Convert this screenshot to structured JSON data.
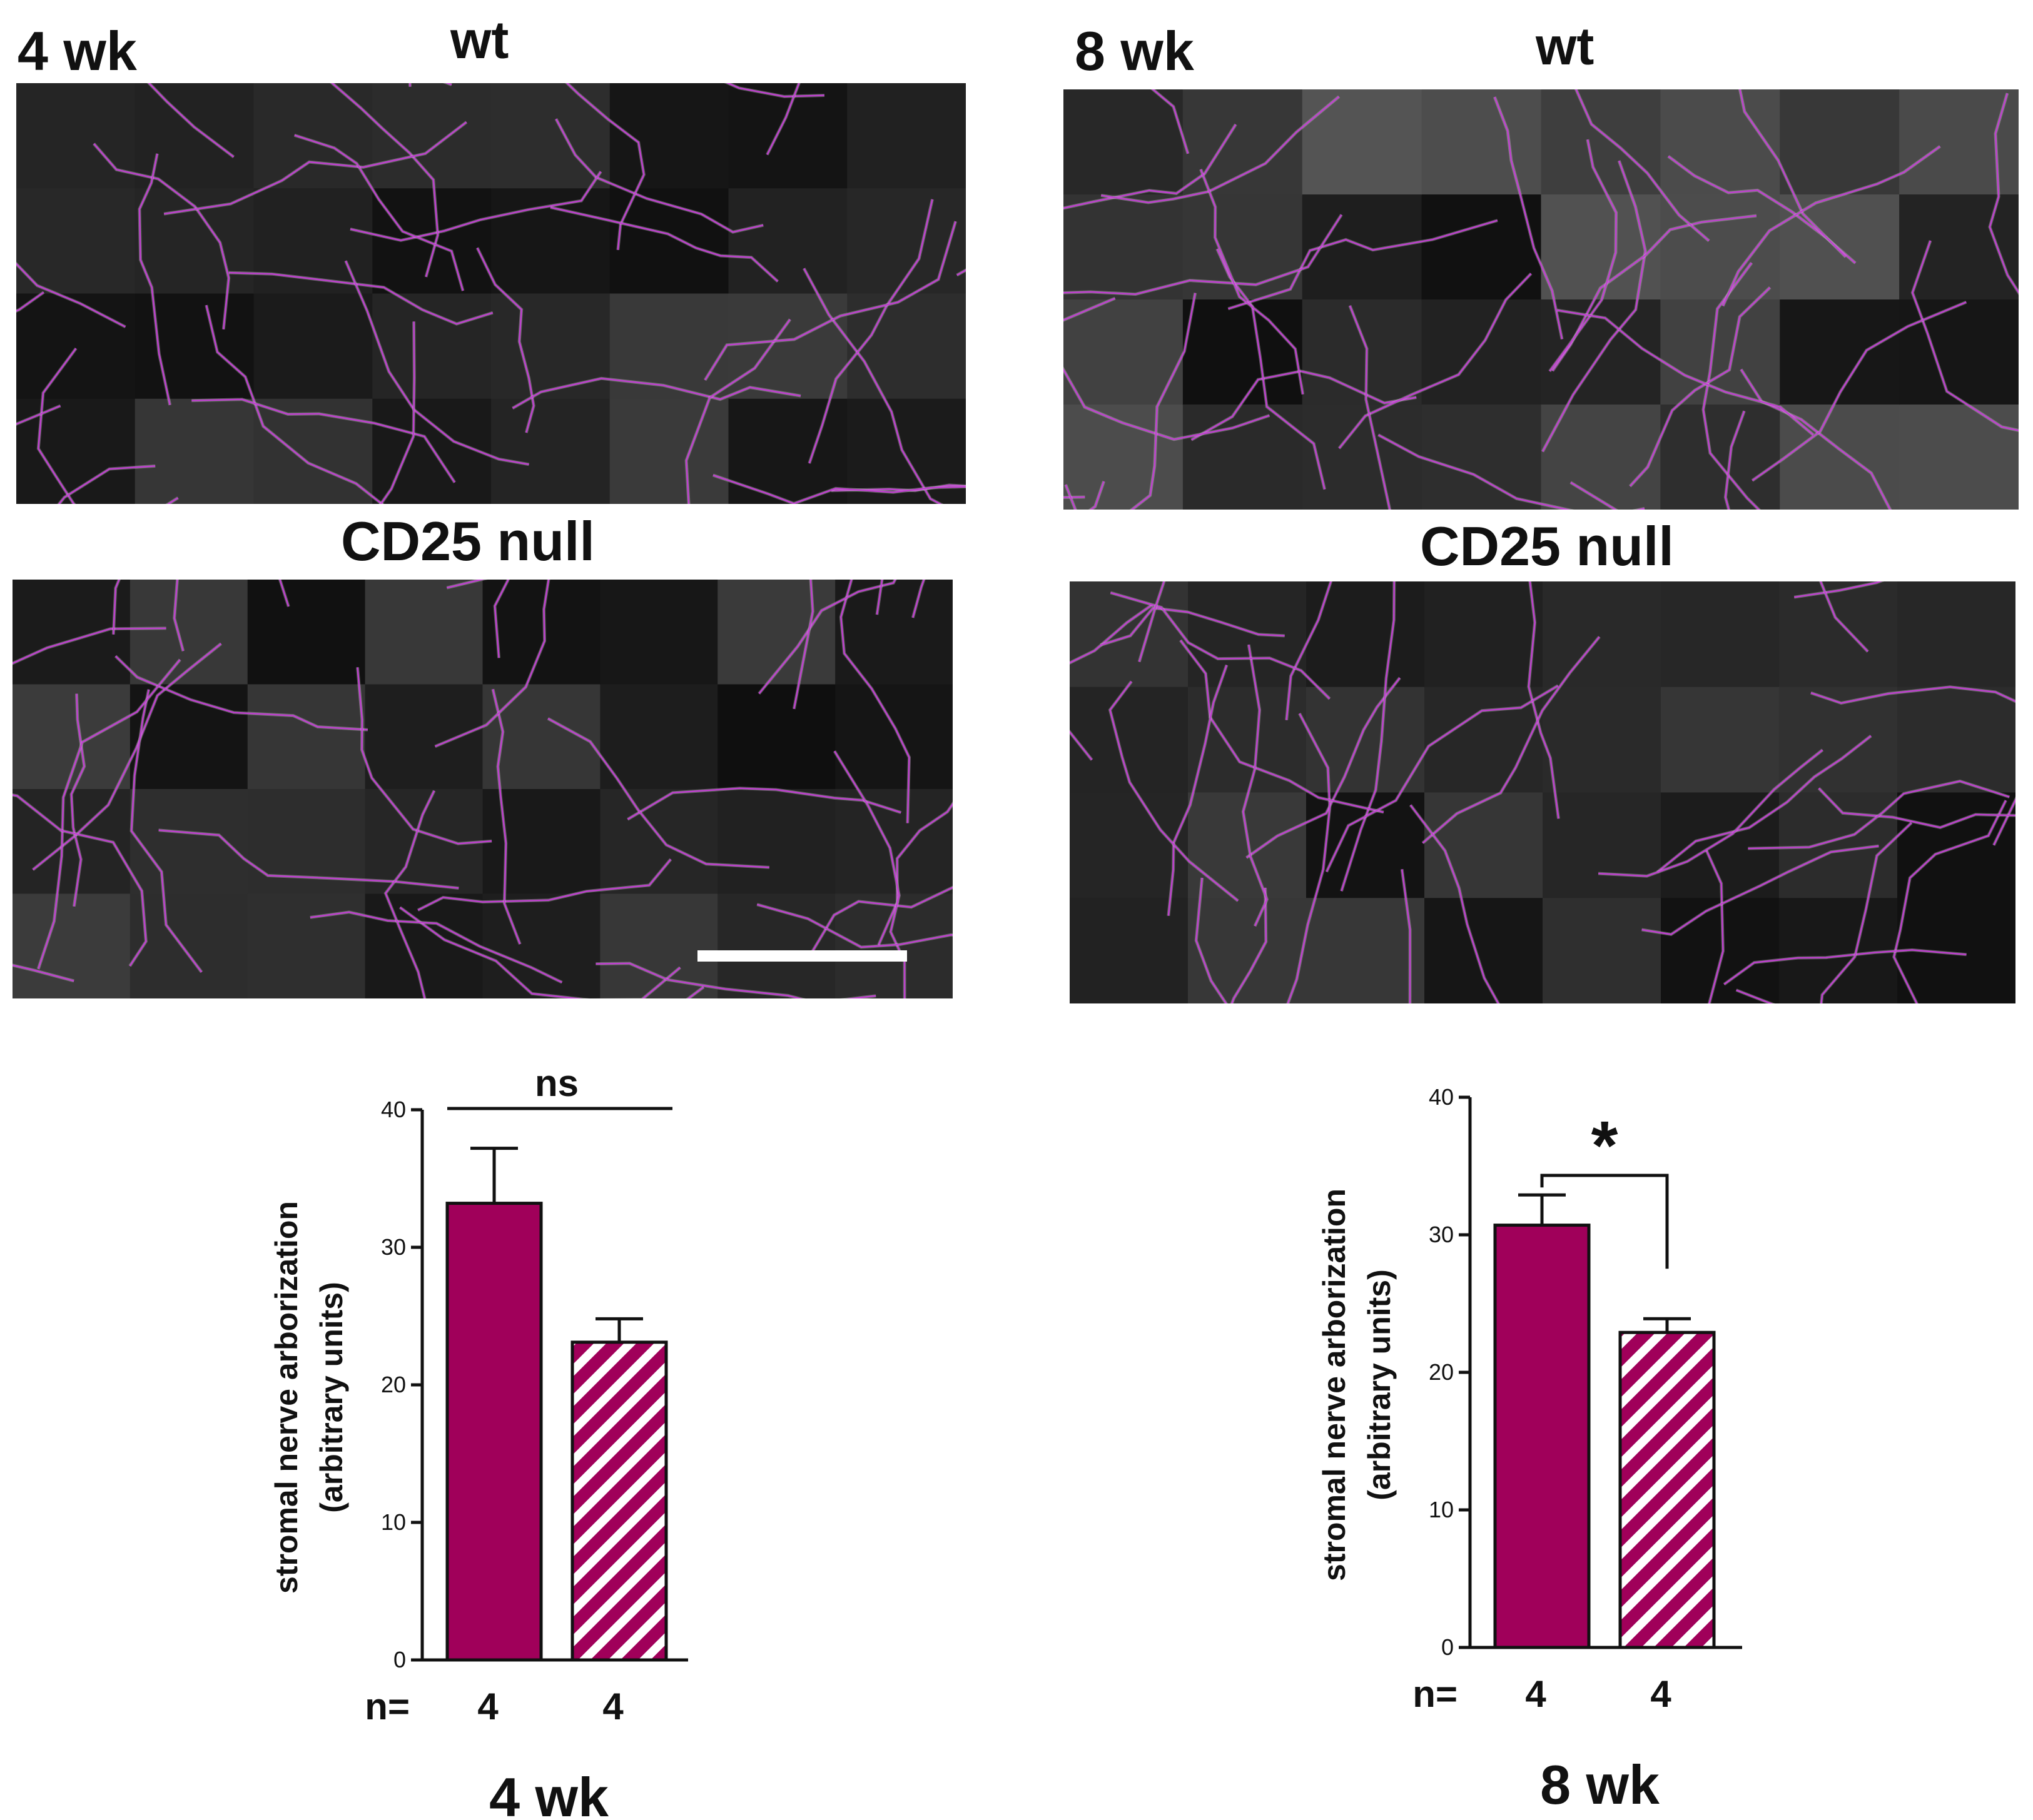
{
  "panels": {
    "left": {
      "age_label": "4 wk",
      "top_label": "wt",
      "bottom_label": "CD25 null"
    },
    "right": {
      "age_label": "8 wk",
      "top_label": "wt",
      "bottom_label": "CD25 null"
    }
  },
  "colors": {
    "wt": "#a0005a",
    "cd25_null_stripe": "#a0005a",
    "nerve_trace": "#c040d0",
    "axis": "#111111"
  },
  "chart_data": [
    {
      "type": "bar",
      "title": "4 wk",
      "ylabel": "stromal nerve arborization (arbitrary units)",
      "ylabel_lines": [
        "stromal nerve arborization",
        "(arbitrary units)"
      ],
      "ylim": [
        0,
        40
      ],
      "yticks": [
        "0",
        "10",
        "20",
        "30",
        "40"
      ],
      "categories": [
        "wt",
        "CD25 null"
      ],
      "values": [
        33.2,
        23.1
      ],
      "errors": [
        4.0,
        1.7
      ],
      "fills": [
        "solid",
        "striped"
      ],
      "n_prefix": "n=",
      "n_values": [
        "4",
        "4"
      ],
      "significance": "ns"
    },
    {
      "type": "bar",
      "title": "8 wk",
      "ylabel": "stromal nerve arborization (arbitrary units)",
      "ylabel_lines": [
        "stromal nerve arborization",
        "(arbitrary units)"
      ],
      "ylim": [
        0,
        40
      ],
      "yticks": [
        "0",
        "10",
        "20",
        "30",
        "40"
      ],
      "categories": [
        "wt",
        "CD25 null"
      ],
      "values": [
        30.7,
        22.9
      ],
      "errors": [
        2.2,
        1.0
      ],
      "fills": [
        "solid",
        "striped"
      ],
      "n_prefix": "n=",
      "n_values": [
        "4",
        "4"
      ],
      "significance": "*"
    }
  ]
}
